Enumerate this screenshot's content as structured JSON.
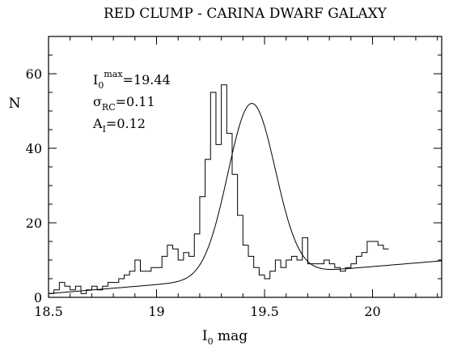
{
  "chart_data": {
    "type": "histogram",
    "title": "RED CLUMP - CARINA DWARF GALAXY",
    "xlabel": {
      "main": "I",
      "sub": "0",
      "rest": " mag"
    },
    "ylabel": "N",
    "xlim": [
      18.5,
      20.32
    ],
    "ylim": [
      0,
      70
    ],
    "xticks": [
      18.5,
      19,
      19.5,
      20
    ],
    "yticks": [
      0,
      20,
      40,
      60
    ],
    "xtick_labels": [
      "18.5",
      "19",
      "19.5",
      "20"
    ],
    "ytick_labels": [
      "0",
      "20",
      "40",
      "60"
    ],
    "annotations": [
      {
        "base": "I",
        "sub": "0",
        "sup": "max",
        "rest": "=19.44"
      },
      {
        "base": "σ",
        "sub": "RC",
        "sup": "",
        "rest": "=0.11"
      },
      {
        "base": "A",
        "sub": "I",
        "sup": "",
        "rest": "=0.12"
      }
    ],
    "histogram": {
      "bin_width": 0.025,
      "x_start": 18.5,
      "counts": [
        1,
        2,
        4,
        3,
        2,
        3,
        1,
        2,
        3,
        2,
        3,
        4,
        4,
        5,
        6,
        7,
        10,
        7,
        7,
        8,
        8,
        11,
        14,
        13,
        10,
        12,
        11,
        17,
        27,
        37,
        55,
        41,
        57,
        44,
        33,
        22,
        14,
        11,
        8,
        6,
        5,
        7,
        10,
        8,
        10,
        11,
        10,
        16,
        9,
        9,
        9,
        10,
        9,
        8,
        7,
        8,
        9,
        11,
        12,
        15,
        15,
        14,
        13
      ]
    },
    "fit_curve": {
      "peak_mag": 19.44,
      "sigma": 0.11,
      "amplitude": 46.5,
      "background_start": [
        18.5,
        1.0
      ],
      "background_end": [
        20.32,
        9.8
      ]
    },
    "grid": false,
    "legend": "none"
  }
}
